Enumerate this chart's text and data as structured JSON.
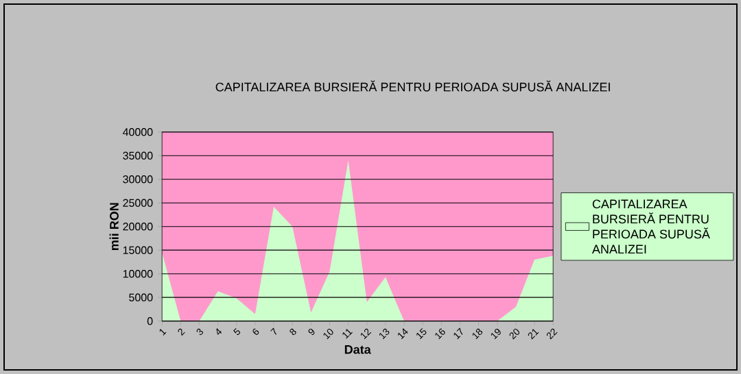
{
  "chart_data": {
    "type": "area",
    "title": "CAPITALIZAREA BURSIERĂ PENTRU PERIOADA SUPUSĂ ANALIZEI",
    "xlabel": "Data",
    "ylabel": "mii RON",
    "categories": [
      "1",
      "2",
      "3",
      "4",
      "5",
      "6",
      "7",
      "8",
      "9",
      "10",
      "11",
      "12",
      "13",
      "14",
      "15",
      "16",
      "17",
      "18",
      "19",
      "20",
      "21",
      "22"
    ],
    "series": [
      {
        "name": "CAPITALIZAREA BURSIERĂ PENTRU PERIOADA SUPUSĂ ANALIZEI",
        "color": "#ccffcc",
        "values": [
          14500,
          0,
          0,
          6300,
          4800,
          1500,
          24200,
          20000,
          1800,
          10500,
          34000,
          4000,
          9300,
          0,
          0,
          0,
          0,
          0,
          0,
          3000,
          13000,
          13800
        ]
      }
    ],
    "ylim": [
      0,
      40000
    ],
    "yticks": [
      0,
      5000,
      10000,
      15000,
      20000,
      25000,
      30000,
      35000,
      40000
    ],
    "grid": "y",
    "legend": "right"
  }
}
